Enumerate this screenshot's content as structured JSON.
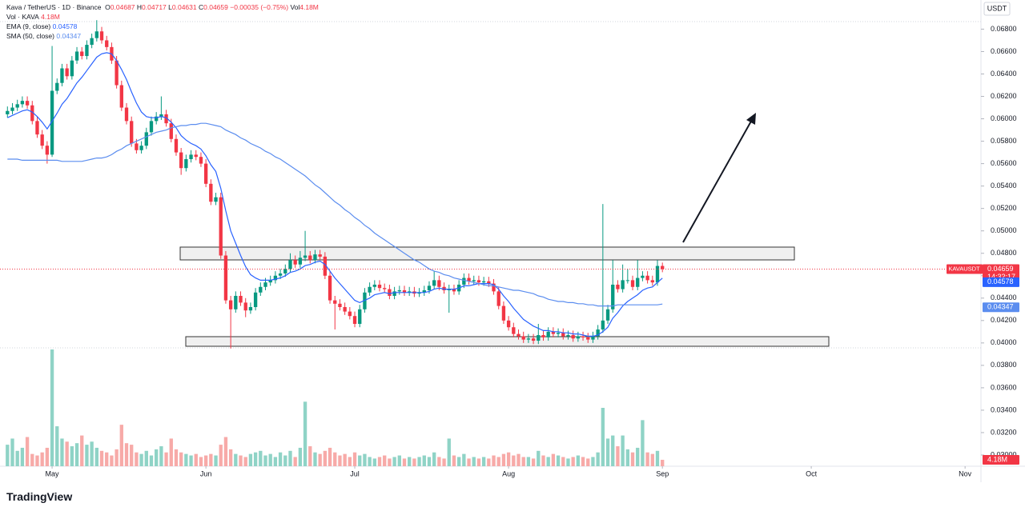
{
  "chart_data": {
    "type": "candlestick",
    "title": "Kava / TetherUS · 1D · Binance",
    "currency": "USDT",
    "symbol": "KAVAUSDT",
    "countdown": "14:32:17",
    "brand": "TradingView",
    "ohlc_letters": {
      "open": "O",
      "high": "H",
      "low": "L",
      "close": "C",
      "volume": "Vol"
    },
    "change": {
      "value": -0.00035,
      "label": "−0.00035"
    },
    "change_pct": {
      "value": -0.75,
      "label": "(−0.75%)"
    },
    "up_color": "#089981",
    "down_color": "#f23645",
    "open": [
      0.0604,
      0.0607,
      0.061,
      0.0613,
      0.0616,
      0.0612,
      0.0598,
      0.0586,
      0.0576,
      0.0568,
      0.0625,
      0.0632,
      0.0645,
      0.0638,
      0.0652,
      0.066,
      0.0656,
      0.0666,
      0.0672,
      0.0678,
      0.067,
      0.0664,
      0.0652,
      0.063,
      0.061,
      0.0598,
      0.0578,
      0.0572,
      0.0576,
      0.0588,
      0.0598,
      0.0602,
      0.0604,
      0.0596,
      0.0582,
      0.057,
      0.0556,
      0.0564,
      0.0568,
      0.0566,
      0.056,
      0.0542,
      0.0526,
      0.053,
      0.0478,
      0.0438,
      0.043,
      0.0442,
      0.0436,
      0.0429,
      0.0432,
      0.0445,
      0.045,
      0.0454,
      0.0456,
      0.046,
      0.0462,
      0.0466,
      0.0474,
      0.047,
      0.0476,
      0.0478,
      0.0474,
      0.0479,
      0.0477,
      0.046,
      0.0438,
      0.0435,
      0.0432,
      0.0428,
      0.0424,
      0.0417,
      0.043,
      0.0445,
      0.045,
      0.0452,
      0.0449,
      0.0448,
      0.0442,
      0.0446,
      0.0447,
      0.0445,
      0.0446,
      0.0444,
      0.0445,
      0.0447,
      0.0451,
      0.0456,
      0.045,
      0.0447,
      0.0448,
      0.0446,
      0.0452,
      0.0458,
      0.0455,
      0.0456,
      0.0454,
      0.0455,
      0.0453,
      0.0446,
      0.0433,
      0.042,
      0.0414,
      0.0408,
      0.0406,
      0.0403,
      0.0404,
      0.0402,
      0.0407,
      0.0405,
      0.041,
      0.0408,
      0.0409,
      0.0406,
      0.0407,
      0.0404,
      0.0406,
      0.0405,
      0.0403,
      0.0406,
      0.0412,
      0.042,
      0.043,
      0.0452,
      0.0448,
      0.0456,
      0.0456,
      0.045,
      0.0458,
      0.046,
      0.0456,
      0.0454,
      0.04687
    ],
    "high": [
      0.0611,
      0.0614,
      0.0617,
      0.062,
      0.062,
      0.0616,
      0.0602,
      0.059,
      0.058,
      0.0665,
      0.0636,
      0.0649,
      0.0649,
      0.0656,
      0.0664,
      0.0664,
      0.067,
      0.0676,
      0.0688,
      0.0682,
      0.0674,
      0.0668,
      0.0656,
      0.0634,
      0.0614,
      0.0602,
      0.0582,
      0.058,
      0.0592,
      0.0602,
      0.0606,
      0.062,
      0.0608,
      0.06,
      0.0586,
      0.0574,
      0.0568,
      0.0572,
      0.0572,
      0.057,
      0.0564,
      0.0546,
      0.0534,
      0.0534,
      0.0482,
      0.0442,
      0.0446,
      0.0446,
      0.044,
      0.0436,
      0.0449,
      0.0454,
      0.0458,
      0.046,
      0.0464,
      0.0466,
      0.047,
      0.048,
      0.0478,
      0.0482,
      0.05,
      0.0482,
      0.0483,
      0.0483,
      0.0481,
      0.0464,
      0.0442,
      0.0439,
      0.0436,
      0.0432,
      0.0428,
      0.0434,
      0.0449,
      0.0454,
      0.0456,
      0.0456,
      0.0453,
      0.0452,
      0.045,
      0.0451,
      0.0451,
      0.045,
      0.045,
      0.0449,
      0.0451,
      0.0455,
      0.0464,
      0.046,
      0.0454,
      0.0452,
      0.0452,
      0.0456,
      0.0462,
      0.0462,
      0.046,
      0.046,
      0.0459,
      0.0459,
      0.0457,
      0.045,
      0.0437,
      0.0424,
      0.0418,
      0.0412,
      0.041,
      0.0408,
      0.0408,
      0.0417,
      0.0411,
      0.0414,
      0.0414,
      0.0413,
      0.0413,
      0.0411,
      0.0411,
      0.041,
      0.041,
      0.0409,
      0.041,
      0.0416,
      0.0524,
      0.0434,
      0.0474,
      0.0456,
      0.047,
      0.0466,
      0.046,
      0.0474,
      0.0464,
      0.0464,
      0.046,
      0.0474,
      0.04717
    ],
    "low": [
      0.0601,
      0.0604,
      0.0607,
      0.061,
      0.0609,
      0.0595,
      0.0583,
      0.0573,
      0.056,
      0.0566,
      0.0622,
      0.0629,
      0.0635,
      0.0635,
      0.0649,
      0.0653,
      0.0653,
      0.0663,
      0.0669,
      0.0667,
      0.0661,
      0.0649,
      0.0627,
      0.0607,
      0.0595,
      0.0575,
      0.0569,
      0.0569,
      0.0573,
      0.0585,
      0.0595,
      0.0599,
      0.0593,
      0.0579,
      0.0567,
      0.055,
      0.0553,
      0.0561,
      0.0563,
      0.0557,
      0.0539,
      0.0523,
      0.0523,
      0.0475,
      0.0435,
      0.0395,
      0.0427,
      0.0433,
      0.0423,
      0.0426,
      0.0429,
      0.0442,
      0.0447,
      0.0451,
      0.0453,
      0.0457,
      0.0459,
      0.0463,
      0.0467,
      0.0467,
      0.0473,
      0.0471,
      0.0471,
      0.0474,
      0.0457,
      0.0435,
      0.0412,
      0.0429,
      0.0425,
      0.0421,
      0.0414,
      0.0414,
      0.0427,
      0.0442,
      0.0447,
      0.0446,
      0.0445,
      0.0439,
      0.0439,
      0.0443,
      0.0442,
      0.0442,
      0.0441,
      0.0441,
      0.0442,
      0.0444,
      0.0448,
      0.0447,
      0.0444,
      0.0427,
      0.0443,
      0.0443,
      0.0449,
      0.0452,
      0.0452,
      0.0451,
      0.0451,
      0.045,
      0.0443,
      0.043,
      0.0417,
      0.0411,
      0.0405,
      0.0403,
      0.04,
      0.04,
      0.0399,
      0.0399,
      0.0402,
      0.0402,
      0.0405,
      0.0405,
      0.0403,
      0.0403,
      0.0401,
      0.0401,
      0.0402,
      0.04,
      0.04,
      0.0403,
      0.0409,
      0.0417,
      0.0427,
      0.0445,
      0.0445,
      0.0453,
      0.0447,
      0.0447,
      0.0455,
      0.0453,
      0.0451,
      0.0451,
      0.04631
    ],
    "close": [
      0.0607,
      0.061,
      0.0613,
      0.0616,
      0.0612,
      0.0598,
      0.0586,
      0.0576,
      0.0568,
      0.0625,
      0.0632,
      0.0645,
      0.0638,
      0.0652,
      0.066,
      0.0656,
      0.0666,
      0.0672,
      0.0678,
      0.067,
      0.0664,
      0.0652,
      0.063,
      0.061,
      0.0598,
      0.0578,
      0.0572,
      0.0576,
      0.0588,
      0.0598,
      0.0602,
      0.0604,
      0.0596,
      0.0582,
      0.057,
      0.0556,
      0.0564,
      0.0568,
      0.0566,
      0.056,
      0.0542,
      0.0526,
      0.053,
      0.0478,
      0.0438,
      0.043,
      0.0442,
      0.0436,
      0.0429,
      0.0432,
      0.0445,
      0.045,
      0.0454,
      0.0456,
      0.046,
      0.0462,
      0.0466,
      0.0474,
      0.047,
      0.0476,
      0.0478,
      0.0474,
      0.0479,
      0.0477,
      0.046,
      0.0438,
      0.0435,
      0.0432,
      0.0428,
      0.0424,
      0.0417,
      0.043,
      0.0445,
      0.045,
      0.0452,
      0.0449,
      0.0448,
      0.0442,
      0.0446,
      0.0447,
      0.0445,
      0.0446,
      0.0444,
      0.0445,
      0.0447,
      0.0451,
      0.0456,
      0.045,
      0.0447,
      0.0448,
      0.0446,
      0.0452,
      0.0458,
      0.0455,
      0.0456,
      0.0454,
      0.0455,
      0.0453,
      0.0446,
      0.0433,
      0.042,
      0.0414,
      0.0408,
      0.0406,
      0.0403,
      0.0404,
      0.0402,
      0.0407,
      0.0405,
      0.041,
      0.0408,
      0.0409,
      0.0406,
      0.0407,
      0.0404,
      0.0406,
      0.0405,
      0.0403,
      0.0406,
      0.0412,
      0.042,
      0.043,
      0.0452,
      0.0448,
      0.0456,
      0.0456,
      0.045,
      0.0458,
      0.046,
      0.0456,
      0.0454,
      0.04687,
      0.04659
    ],
    "volume": {
      "name": "Vol · KAVA",
      "up_color": "#8fd3c6",
      "down_color": "#f7aaa8",
      "last_label": "4.18M",
      "values": [
        14,
        18,
        10,
        12,
        19,
        8,
        7,
        9,
        12,
        76,
        26,
        18,
        16,
        13,
        15,
        20,
        14,
        16,
        12,
        10,
        9,
        7,
        11,
        27,
        15,
        14,
        9,
        8,
        10,
        7,
        11,
        13,
        9,
        18,
        11,
        9,
        8,
        7,
        8,
        6,
        7,
        8,
        7,
        14,
        19,
        11,
        8,
        7,
        6,
        8,
        9,
        10,
        7,
        8,
        6,
        9,
        7,
        10,
        6,
        12,
        42,
        13,
        9,
        8,
        10,
        12,
        9,
        7,
        8,
        6,
        9,
        7,
        8,
        6,
        5,
        6,
        7,
        5,
        6,
        7,
        5,
        6,
        5,
        6,
        7,
        6,
        9,
        6,
        5,
        18,
        7,
        6,
        8,
        5,
        6,
        5,
        6,
        5,
        7,
        6,
        8,
        9,
        7,
        8,
        6,
        6,
        5,
        10,
        7,
        6,
        8,
        7,
        6,
        5,
        6,
        7,
        6,
        5,
        6,
        9,
        38,
        18,
        20,
        13,
        20,
        11,
        9,
        12,
        30,
        9,
        8,
        10,
        4.18
      ]
    },
    "indicators": [
      {
        "name": "EMA (9, close)",
        "color": "#2962ff",
        "values": [
          0.0601,
          0.0603,
          0.0605,
          0.0607,
          0.0608,
          0.0606,
          0.0602,
          0.0597,
          0.0591,
          0.0598,
          0.0605,
          0.0613,
          0.0618,
          0.0625,
          0.0632,
          0.0637,
          0.0643,
          0.0649,
          0.0655,
          0.0658,
          0.0659,
          0.0658,
          0.0652,
          0.0644,
          0.0635,
          0.0624,
          0.0614,
          0.0606,
          0.0602,
          0.0601,
          0.0601,
          0.0602,
          0.0601,
          0.0597,
          0.0592,
          0.0585,
          0.0581,
          0.0578,
          0.0576,
          0.0573,
          0.0567,
          0.0559,
          0.0553,
          0.0538,
          0.0518,
          0.05,
          0.0489,
          0.0478,
          0.0468,
          0.0461,
          0.0458,
          0.0456,
          0.0456,
          0.0456,
          0.0457,
          0.0458,
          0.046,
          0.0463,
          0.0464,
          0.0466,
          0.0469,
          0.047,
          0.0472,
          0.0473,
          0.047,
          0.0464,
          0.0458,
          0.0453,
          0.0448,
          0.0443,
          0.0438,
          0.0436,
          0.0438,
          0.044,
          0.0443,
          0.0444,
          0.0445,
          0.0444,
          0.0445,
          0.0445,
          0.0445,
          0.0445,
          0.0445,
          0.0445,
          0.0445,
          0.0446,
          0.0448,
          0.0449,
          0.0448,
          0.0448,
          0.0448,
          0.0449,
          0.0451,
          0.0451,
          0.0452,
          0.0453,
          0.0453,
          0.0453,
          0.0452,
          0.0448,
          0.0442,
          0.0437,
          0.0431,
          0.0426,
          0.0421,
          0.0418,
          0.0415,
          0.0413,
          0.0411,
          0.0411,
          0.041,
          0.041,
          0.0409,
          0.0409,
          0.0408,
          0.0408,
          0.0407,
          0.0406,
          0.0406,
          0.0407,
          0.041,
          0.0414,
          0.0422,
          0.0427,
          0.0433,
          0.0437,
          0.044,
          0.0443,
          0.0447,
          0.0449,
          0.045,
          0.0454,
          0.04578
        ]
      },
      {
        "name": "SMA (50, close)",
        "color": "#5b8def",
        "values": [
          0.0564,
          0.0564,
          0.0564,
          0.0563,
          0.0563,
          0.0563,
          0.0563,
          0.0563,
          0.0563,
          0.0563,
          0.0563,
          0.0562,
          0.0562,
          0.0562,
          0.0562,
          0.0562,
          0.0563,
          0.0564,
          0.0565,
          0.0565,
          0.0566,
          0.0568,
          0.0571,
          0.0573,
          0.0576,
          0.0578,
          0.058,
          0.0582,
          0.0584,
          0.0586,
          0.0588,
          0.0589,
          0.059,
          0.0592,
          0.0593,
          0.0594,
          0.0594,
          0.0595,
          0.0595,
          0.0596,
          0.0596,
          0.0595,
          0.0594,
          0.0593,
          0.059,
          0.0588,
          0.0586,
          0.0583,
          0.0581,
          0.0578,
          0.0576,
          0.0574,
          0.0571,
          0.0569,
          0.0566,
          0.0564,
          0.0561,
          0.0558,
          0.0555,
          0.0552,
          0.0549,
          0.0545,
          0.0541,
          0.0538,
          0.0534,
          0.053,
          0.0526,
          0.0523,
          0.0519,
          0.0516,
          0.0512,
          0.0509,
          0.0505,
          0.0502,
          0.0498,
          0.0495,
          0.0492,
          0.0489,
          0.0486,
          0.0483,
          0.048,
          0.0477,
          0.0474,
          0.0472,
          0.0469,
          0.0466,
          0.0464,
          0.0463,
          0.0461,
          0.046,
          0.0458,
          0.0457,
          0.0456,
          0.0455,
          0.0454,
          0.0453,
          0.0452,
          0.0451,
          0.0451,
          0.045,
          0.0449,
          0.0448,
          0.0447,
          0.0447,
          0.0446,
          0.0445,
          0.0444,
          0.0442,
          0.0441,
          0.0439,
          0.0438,
          0.0437,
          0.0437,
          0.0436,
          0.0436,
          0.0435,
          0.0435,
          0.0434,
          0.0434,
          0.0433,
          0.0433,
          0.0433,
          0.0433,
          0.0434,
          0.0434,
          0.0434,
          0.0434,
          0.0434,
          0.0434,
          0.0434,
          0.0434,
          0.0434,
          0.04347
        ]
      }
    ],
    "xlim": [
      -1.5,
      196.2
    ],
    "xticks": [
      {
        "value": 9,
        "label": "May"
      },
      {
        "value": 40,
        "label": "Jun"
      },
      {
        "value": 70,
        "label": "Jul"
      },
      {
        "value": 101,
        "label": "Aug"
      },
      {
        "value": 132,
        "label": "Sep"
      },
      {
        "value": 162,
        "label": "Oct"
      },
      {
        "value": 193,
        "label": "Nov"
      }
    ],
    "ylim": [
      0.029,
      0.0706
    ],
    "yticks": [
      {
        "value": 0.068,
        "label": "0.06800"
      },
      {
        "value": 0.066,
        "label": "0.06600"
      },
      {
        "value": 0.064,
        "label": "0.06400"
      },
      {
        "value": 0.062,
        "label": "0.06200"
      },
      {
        "value": 0.06,
        "label": "0.06000"
      },
      {
        "value": 0.058,
        "label": "0.05800"
      },
      {
        "value": 0.056,
        "label": "0.05600"
      },
      {
        "value": 0.054,
        "label": "0.05400"
      },
      {
        "value": 0.052,
        "label": "0.05200"
      },
      {
        "value": 0.05,
        "label": "0.05000"
      },
      {
        "value": 0.048,
        "label": "0.04800"
      },
      {
        "value": 0.046,
        "label": "0.04600"
      },
      {
        "value": 0.044,
        "label": "0.04400"
      },
      {
        "value": 0.042,
        "label": "0.04200"
      },
      {
        "value": 0.04,
        "label": "0.04000"
      },
      {
        "value": 0.038,
        "label": "0.03800"
      },
      {
        "value": 0.036,
        "label": "0.03600"
      },
      {
        "value": 0.034,
        "label": "0.03400"
      },
      {
        "value": 0.032,
        "label": "0.03200"
      },
      {
        "value": 0.03,
        "label": "0.03000"
      }
    ],
    "grid": false
  }
}
